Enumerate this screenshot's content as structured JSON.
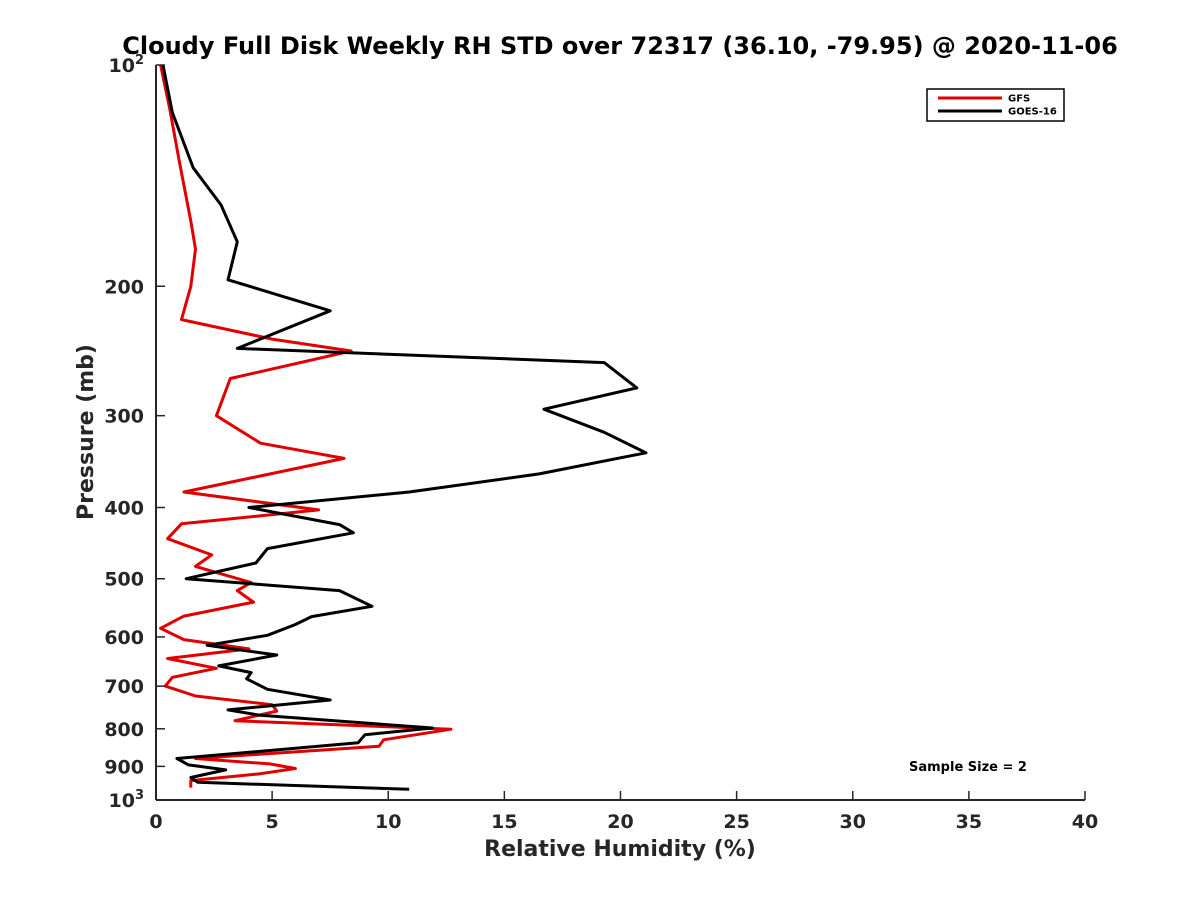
{
  "chart_data": {
    "type": "line",
    "title": "Cloudy Full Disk Weekly RH STD over 72317 (36.10, -79.95) @ 2020-11-06",
    "xlabel": "Relative Humidity (%)",
    "ylabel": "Pressure (mb)",
    "xlim": [
      0,
      40
    ],
    "ylim": [
      100,
      1000
    ],
    "y_scale": "log",
    "y_reversed": true,
    "grid": false,
    "legend_position": "top-right",
    "x_ticks": [
      {
        "value": 0,
        "label": "0"
      },
      {
        "value": 5,
        "label": "5"
      },
      {
        "value": 10,
        "label": "10"
      },
      {
        "value": 15,
        "label": "15"
      },
      {
        "value": 20,
        "label": "20"
      },
      {
        "value": 25,
        "label": "25"
      },
      {
        "value": 30,
        "label": "30"
      },
      {
        "value": 35,
        "label": "35"
      },
      {
        "value": 40,
        "label": "40"
      }
    ],
    "y_ticks": [
      {
        "value": 100,
        "base": "10",
        "exp": "2"
      },
      {
        "value": 200,
        "label": "200"
      },
      {
        "value": 300,
        "label": "300"
      },
      {
        "value": 400,
        "label": "400"
      },
      {
        "value": 500,
        "label": "500"
      },
      {
        "value": 600,
        "label": "600"
      },
      {
        "value": 700,
        "label": "700"
      },
      {
        "value": 800,
        "label": "800"
      },
      {
        "value": 900,
        "label": "900"
      },
      {
        "value": 1000,
        "base": "10",
        "exp": "3"
      }
    ],
    "annotation": "Sample Size = 2",
    "series": [
      {
        "name": "GFS",
        "color": "#e00000",
        "points": [
          [
            0.2,
            100
          ],
          [
            0.6,
            115
          ],
          [
            1.0,
            135
          ],
          [
            1.5,
            163
          ],
          [
            1.7,
            178
          ],
          [
            1.5,
            200
          ],
          [
            1.1,
            222
          ],
          [
            5.0,
            236
          ],
          [
            8.4,
            245
          ],
          [
            3.2,
            267
          ],
          [
            2.6,
            300
          ],
          [
            4.5,
            327
          ],
          [
            8.1,
            343
          ],
          [
            4.2,
            364
          ],
          [
            1.2,
            381
          ],
          [
            7.0,
            403
          ],
          [
            1.1,
            421
          ],
          [
            0.5,
            441
          ],
          [
            2.4,
            464
          ],
          [
            1.7,
            481
          ],
          [
            4.1,
            506
          ],
          [
            3.5,
            519
          ],
          [
            4.2,
            538
          ],
          [
            1.2,
            562
          ],
          [
            0.2,
            584
          ],
          [
            1.2,
            605
          ],
          [
            4.0,
            623
          ],
          [
            0.5,
            642
          ],
          [
            2.6,
            662
          ],
          [
            0.7,
            681
          ],
          [
            0.4,
            700
          ],
          [
            1.7,
            722
          ],
          [
            5.0,
            742
          ],
          [
            5.2,
            757
          ],
          [
            3.4,
            780
          ],
          [
            12.7,
            801
          ],
          [
            9.8,
            828
          ],
          [
            9.6,
            845
          ],
          [
            1.7,
            878
          ],
          [
            4.9,
            893
          ],
          [
            6.0,
            906
          ],
          [
            4.5,
            921
          ],
          [
            1.5,
            941
          ],
          [
            1.5,
            962
          ]
        ]
      },
      {
        "name": "GOES-16",
        "color": "#000000",
        "points": [
          [
            0.3,
            100
          ],
          [
            0.7,
            116
          ],
          [
            1.6,
            138
          ],
          [
            2.8,
            155
          ],
          [
            3.5,
            174
          ],
          [
            3.1,
            196
          ],
          [
            7.5,
            216
          ],
          [
            3.5,
            243
          ],
          [
            19.3,
            254
          ],
          [
            20.7,
            275
          ],
          [
            16.7,
            294
          ],
          [
            19.3,
            316
          ],
          [
            21.1,
            337
          ],
          [
            16.5,
            360
          ],
          [
            10.9,
            381
          ],
          [
            4.0,
            400
          ],
          [
            7.9,
            422
          ],
          [
            8.5,
            433
          ],
          [
            4.8,
            455
          ],
          [
            4.3,
            476
          ],
          [
            1.3,
            500
          ],
          [
            7.9,
            519
          ],
          [
            9.3,
            545
          ],
          [
            6.7,
            563
          ],
          [
            6.0,
            577
          ],
          [
            4.8,
            597
          ],
          [
            2.2,
            616
          ],
          [
            5.2,
            635
          ],
          [
            2.7,
            657
          ],
          [
            4.1,
            671
          ],
          [
            3.9,
            684
          ],
          [
            4.8,
            707
          ],
          [
            7.5,
            731
          ],
          [
            3.1,
            754
          ],
          [
            4.5,
            767
          ],
          [
            11.9,
            798
          ],
          [
            9.0,
            815
          ],
          [
            8.7,
            836
          ],
          [
            0.9,
            878
          ],
          [
            1.4,
            896
          ],
          [
            3.0,
            910
          ],
          [
            1.5,
            932
          ],
          [
            1.8,
            946
          ],
          [
            10.9,
            967
          ]
        ]
      }
    ]
  }
}
